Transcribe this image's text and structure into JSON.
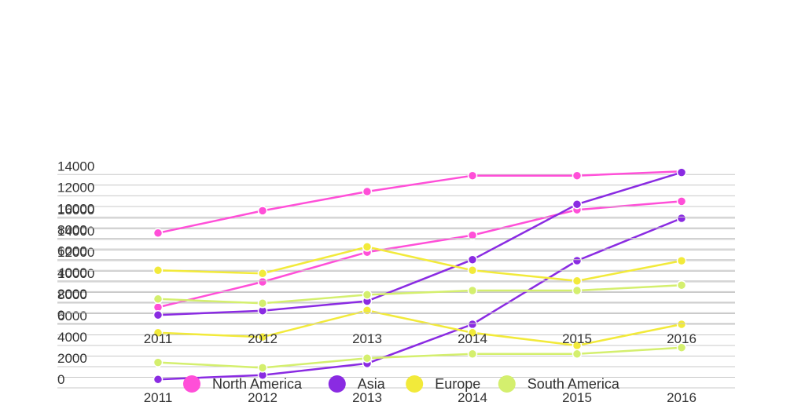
{
  "chart_data": [
    {
      "type": "line",
      "title": "",
      "xlabel": "",
      "ylabel": "",
      "categories": [
        "2011",
        "2012",
        "2013",
        "2014",
        "2015",
        "2016"
      ],
      "ylim": [
        0,
        14000
      ],
      "ytick_labels": [
        "0",
        "2000",
        "4000",
        "6000",
        "8000",
        "10000",
        "12000",
        "14000"
      ],
      "grid": true,
      "legend_position": "bottom",
      "series": [
        {
          "name": "North America",
          "color": "#ff4fd8",
          "values": [
            8500,
            10600,
            12400,
            13900,
            13900,
            14300
          ]
        },
        {
          "name": "Asia",
          "color": "#8a2be2",
          "values": [
            800,
            1200,
            2100,
            6000,
            11200,
            14200
          ]
        },
        {
          "name": "Europe",
          "color": "#f2ea3a",
          "values": [
            5000,
            4700,
            7200,
            5000,
            4000,
            5900
          ]
        },
        {
          "name": "South America",
          "color": "#d4ef6e",
          "values": [
            2300,
            1900,
            2700,
            3100,
            3100,
            3600
          ]
        }
      ]
    },
    {
      "type": "line",
      "title": "",
      "xlabel": "",
      "ylabel": "",
      "categories": [
        "2011",
        "2012",
        "2013",
        "2014",
        "2015",
        "2016"
      ],
      "ylim": [
        0,
        16000
      ],
      "ytick_labels": [
        "0",
        "2000",
        "4000",
        "6000",
        "8000",
        "10000",
        "12000",
        "14000",
        "16000"
      ],
      "grid": true,
      "legend_position": "bottom",
      "series": [
        {
          "name": "North America",
          "color": "#ff4fd8",
          "values": [
            7600,
            10000,
            12800,
            14400,
            16800,
            17600
          ]
        },
        {
          "name": "Asia",
          "color": "#8a2be2",
          "values": [
            800,
            1200,
            2300,
            6000,
            12000,
            16000
          ]
        },
        {
          "name": "Europe",
          "color": "#f2ea3a",
          "values": [
            5200,
            4800,
            7300,
            5200,
            4000,
            6000
          ]
        },
        {
          "name": "South America",
          "color": "#d4ef6e",
          "values": [
            2400,
            1900,
            2800,
            3200,
            3200,
            3800
          ]
        }
      ]
    }
  ],
  "legend": [
    {
      "label": "North America",
      "color": "#ff4fd8"
    },
    {
      "label": "Asia",
      "color": "#8a2be2"
    },
    {
      "label": "Europe",
      "color": "#f2ea3a"
    },
    {
      "label": "South America",
      "color": "#d4ef6e"
    }
  ]
}
